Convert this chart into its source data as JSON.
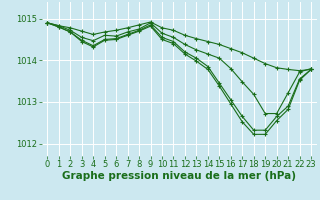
{
  "background_color": "#cce8f0",
  "grid_color": "#ffffff",
  "line_color": "#1a6e1a",
  "xlabel": "Graphe pression niveau de la mer (hPa)",
  "xlabel_fontsize": 7.5,
  "tick_fontsize": 6,
  "ylim": [
    1011.7,
    1015.4
  ],
  "xlim": [
    -0.5,
    23.5
  ],
  "yticks": [
    1012,
    1013,
    1014,
    1015
  ],
  "xticks": [
    0,
    1,
    2,
    3,
    4,
    5,
    6,
    7,
    8,
    9,
    10,
    11,
    12,
    13,
    14,
    15,
    16,
    17,
    18,
    19,
    20,
    21,
    22,
    23
  ],
  "series": [
    [
      1014.9,
      1014.83,
      1014.78,
      1014.7,
      1014.62,
      1014.68,
      1014.72,
      1014.78,
      1014.85,
      1014.92,
      1014.78,
      1014.72,
      1014.6,
      1014.52,
      1014.45,
      1014.38,
      1014.28,
      1014.18,
      1014.05,
      1013.92,
      1013.82,
      1013.78,
      1013.75,
      1013.78
    ],
    [
      1014.9,
      1014.83,
      1014.72,
      1014.55,
      1014.47,
      1014.6,
      1014.58,
      1014.68,
      1014.75,
      1014.9,
      1014.65,
      1014.55,
      1014.38,
      1014.25,
      1014.15,
      1014.05,
      1013.8,
      1013.48,
      1013.18,
      1012.72,
      1012.72,
      1013.22,
      1013.72,
      1013.8
    ],
    [
      1014.9,
      1014.8,
      1014.68,
      1014.48,
      1014.35,
      1014.5,
      1014.52,
      1014.62,
      1014.72,
      1014.85,
      1014.55,
      1014.45,
      1014.2,
      1014.05,
      1013.85,
      1013.45,
      1013.05,
      1012.65,
      1012.32,
      1012.32,
      1012.65,
      1012.9,
      1013.55,
      1013.78
    ],
    [
      1014.9,
      1014.8,
      1014.68,
      1014.45,
      1014.32,
      1014.48,
      1014.5,
      1014.6,
      1014.7,
      1014.82,
      1014.5,
      1014.4,
      1014.15,
      1013.98,
      1013.78,
      1013.38,
      1012.95,
      1012.52,
      1012.22,
      1012.22,
      1012.55,
      1012.82,
      1013.52,
      1013.78
    ]
  ]
}
